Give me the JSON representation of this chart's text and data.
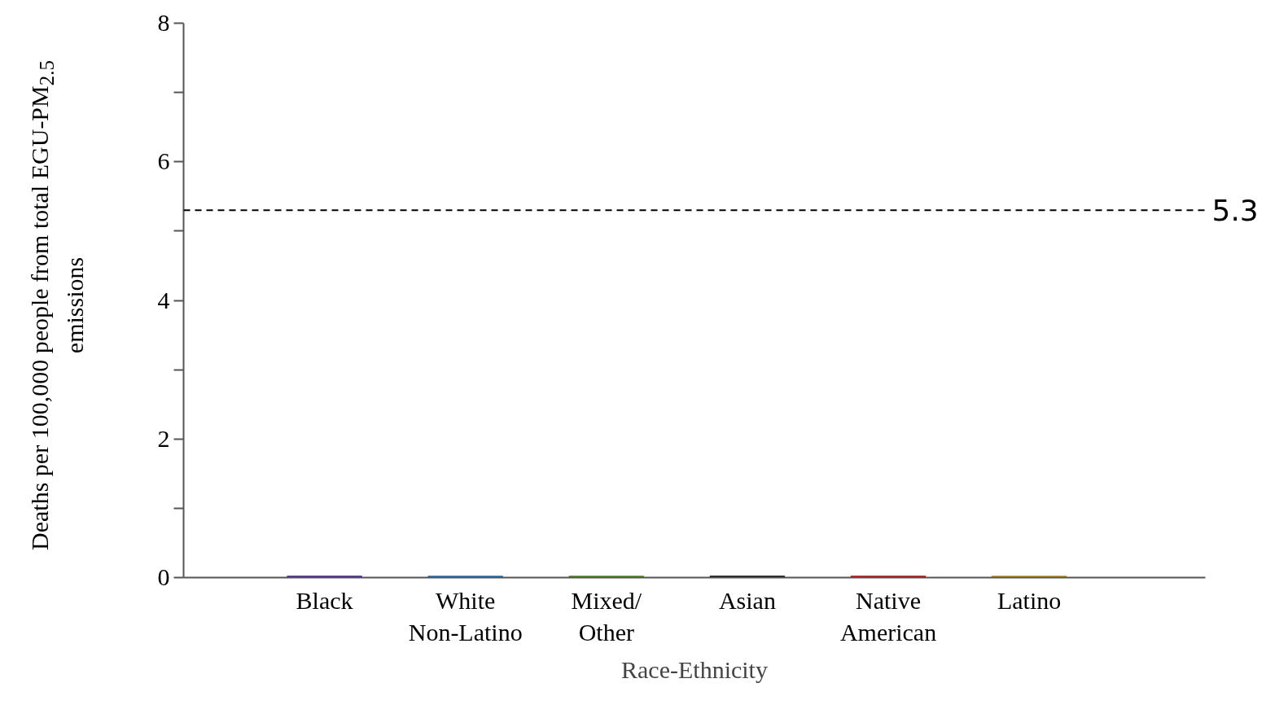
{
  "chart_data": {
    "type": "bar",
    "xlabel": "Race-Ethnicity",
    "ylabel": "Deaths per 100,000 people from total EGU-PM$_{2.5}$ emissions",
    "categories": [
      "Black",
      "White Non-Latino",
      "Mixed/ Other",
      "Asian",
      "Native American",
      "Latino"
    ],
    "values": [
      0.02,
      0.02,
      0.02,
      0.02,
      0.02,
      0.02
    ],
    "colors": [
      "#4b1a8a",
      "#1f70b4",
      "#4a8a1e",
      "#000000",
      "#c00000",
      "#c09020"
    ],
    "ylim": [
      0,
      8
    ],
    "yticks": [
      0,
      {
        "value": 1,
        "label": null
      },
      2,
      {
        "value": 3,
        "label": null
      },
      4,
      {
        "value": 5,
        "label": null
      },
      6,
      {
        "value": 7,
        "label": null
      },
      8
    ],
    "ref_lines": [
      {
        "axis": "y",
        "value": 5.3,
        "label": "5.3",
        "line_style": "dashed",
        "color": "#000000"
      }
    ],
    "grid": false
  }
}
